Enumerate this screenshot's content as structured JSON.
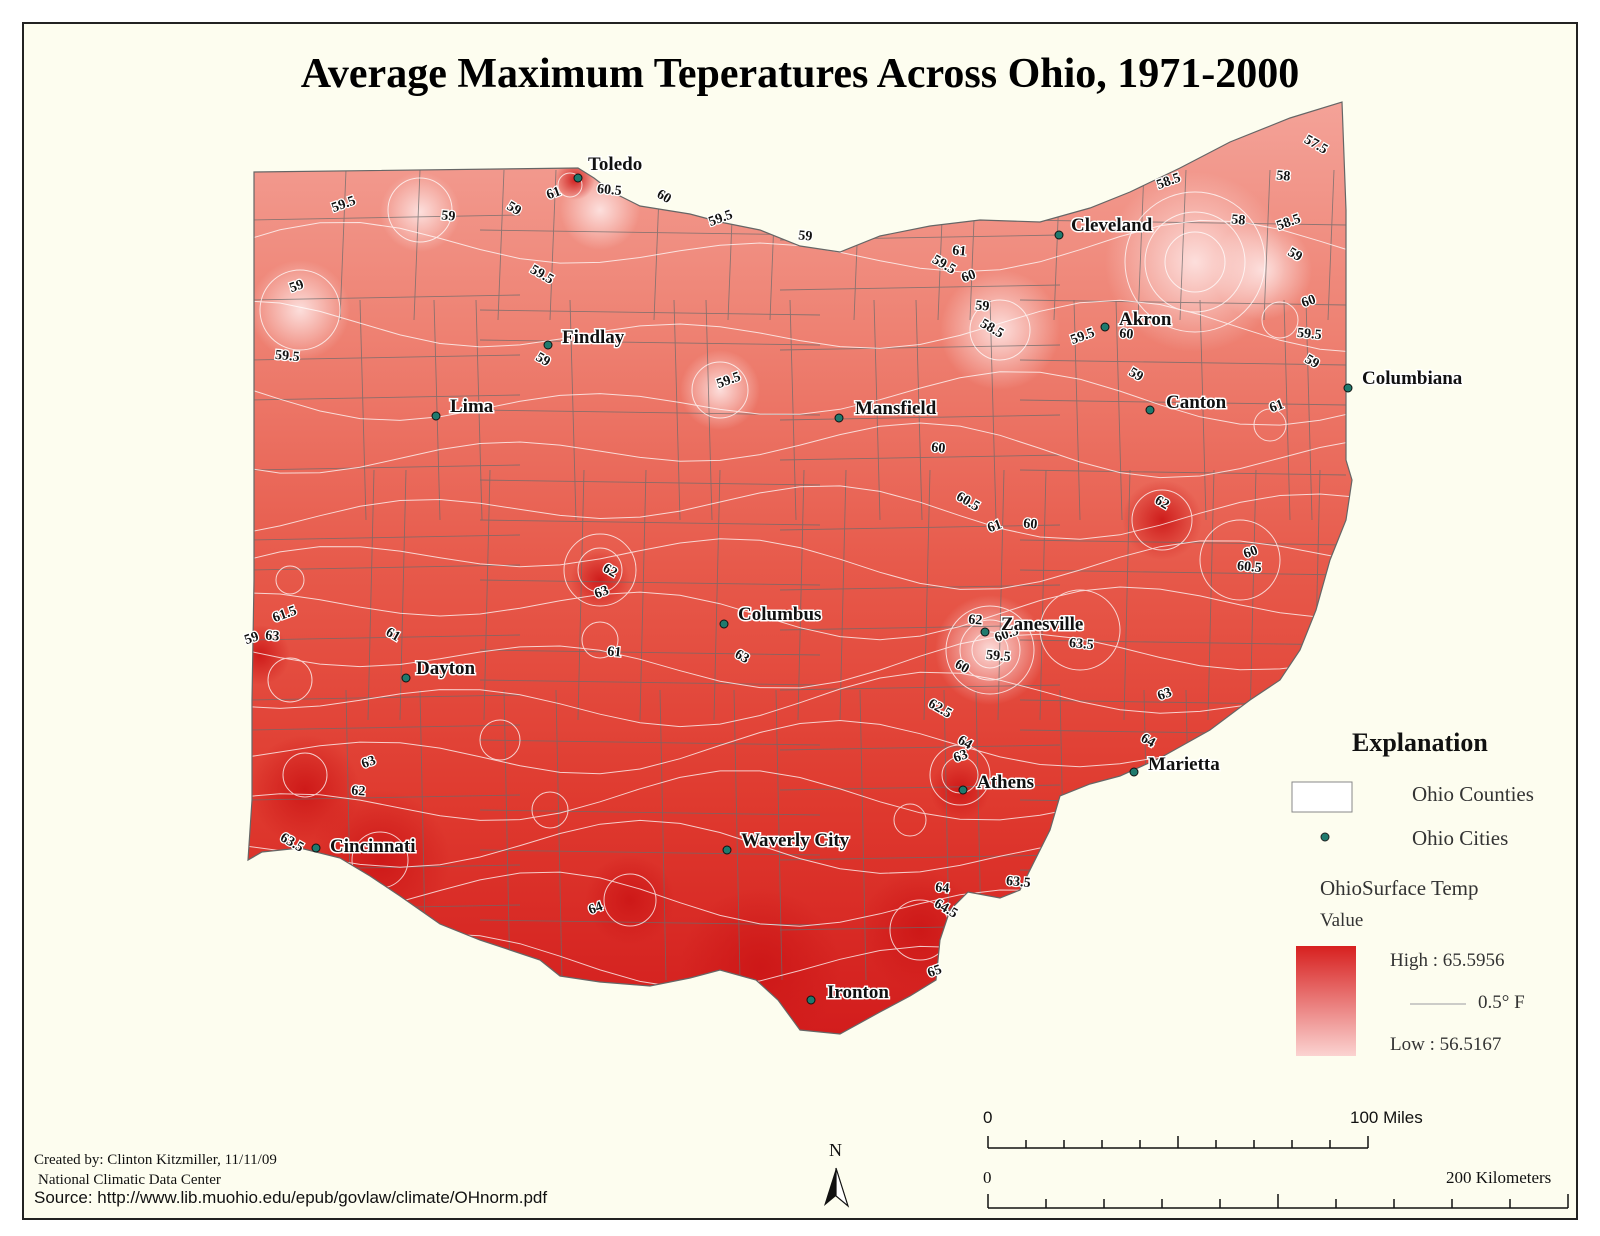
{
  "map": {
    "title": "Average Maximum Teperatures Across Ohio, 1971-2000",
    "cities": [
      {
        "name": "Toledo"
      },
      {
        "name": "Findlay"
      },
      {
        "name": "Lima"
      },
      {
        "name": "Mansfield"
      },
      {
        "name": "Cleveland"
      },
      {
        "name": "Akron"
      },
      {
        "name": "Canton"
      },
      {
        "name": "Columbiana"
      },
      {
        "name": "Columbus"
      },
      {
        "name": "Dayton"
      },
      {
        "name": "Zanesville"
      },
      {
        "name": "Marietta"
      },
      {
        "name": "Athens"
      },
      {
        "name": "Cincinnati"
      },
      {
        "name": "Waverly City"
      },
      {
        "name": "Ironton"
      }
    ],
    "isotherm_labels": [
      "59.5",
      "59",
      "59",
      "61",
      "60.5",
      "60",
      "59.5",
      "59",
      "59.5",
      "59",
      "59.5",
      "59",
      "58.5",
      "58",
      "57.5",
      "58.5",
      "58",
      "59",
      "60",
      "59.5",
      "59",
      "61",
      "61",
      "59.5",
      "60",
      "59",
      "58.5",
      "59.5",
      "60",
      "59",
      "59.5",
      "60",
      "60.5",
      "61",
      "60",
      "62",
      "60",
      "60.5",
      "62",
      "63",
      "61",
      "61",
      "61.5",
      "63",
      "63",
      "59",
      "59.5",
      "60",
      "60.5",
      "62",
      "62.5",
      "63",
      "63.5",
      "64",
      "63",
      "62",
      "63.5",
      "64",
      "64",
      "64.5",
      "65",
      "63.5",
      "64",
      "63"
    ],
    "colors": {
      "high": "#d7201f",
      "low": "#fbd3d1",
      "border": "#555555",
      "isotherm": "#ffffff",
      "background": "#fdfdef"
    }
  },
  "legend": {
    "title": "Explanation",
    "counties_label": "Ohio Counties",
    "cities_label": "Ohio Cities",
    "surface_label": "OhioSurface Temp",
    "value_label": "Value",
    "high_label": "High : 65.5956",
    "contour_label": "0.5° F",
    "low_label": "Low : 56.5167",
    "high_value": 65.5956,
    "low_value": 56.5167,
    "contour_interval": 0.5
  },
  "credits": {
    "created_by": "Created by: Clinton Kitzmiller, 11/11/09",
    "data_source": "National Climatic Data Center",
    "source": "Source: http://www.lib.muohio.edu/epub/govlaw/climate/OHnorm.pdf"
  },
  "scale": {
    "miles_start": "0",
    "miles_end": "100 Miles",
    "km_start": "0",
    "km_end": "200 Kilometers",
    "north": "N"
  }
}
